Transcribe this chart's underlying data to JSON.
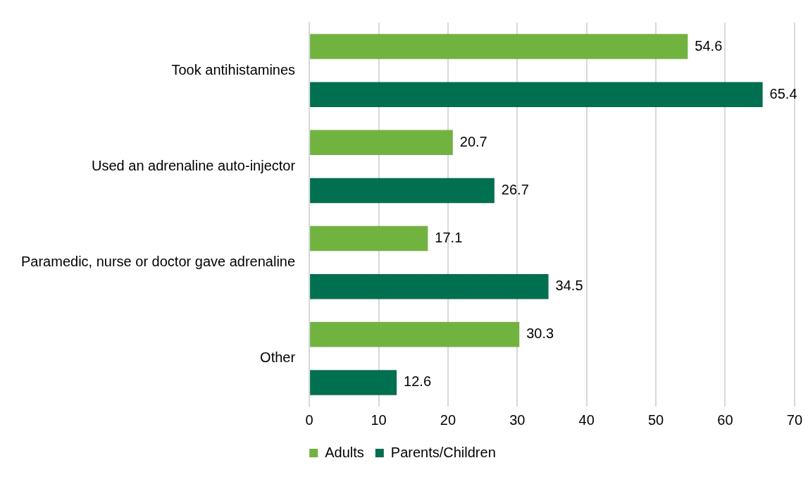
{
  "chart_data": {
    "type": "bar",
    "orientation": "horizontal",
    "categories": [
      "Took antihistamines",
      "Used an adrenaline auto-injector",
      "Paramedic, nurse or doctor gave adrenaline",
      "Other"
    ],
    "series": [
      {
        "name": "Adults",
        "color": "#70b33f",
        "values": [
          54.6,
          20.7,
          17.1,
          30.3
        ]
      },
      {
        "name": "Parents/Children",
        "color": "#007050",
        "values": [
          65.4,
          26.7,
          34.5,
          12.6
        ]
      }
    ],
    "xlim": [
      0,
      70
    ],
    "xticks": [
      0,
      10,
      20,
      30,
      40,
      50,
      60,
      70
    ],
    "grid": "x",
    "legend": "bottom",
    "data_labels": true
  }
}
